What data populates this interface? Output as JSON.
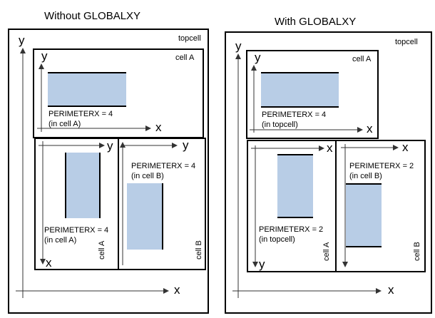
{
  "left": {
    "title": "Without GLOBALXY",
    "topcell": "topcell",
    "x": "x",
    "y": "y",
    "cellA_top": {
      "name": "cell A",
      "note1": "PERIMETERX = 4",
      "note2": "(in cell A)"
    },
    "cellA_rot": {
      "name": "cell A",
      "note1": "PERIMETERX = 4",
      "note2": "(in cell A)"
    },
    "cellB": {
      "name": "cell B",
      "note1": "PERIMETERX = 4",
      "note2": "(in cell B)"
    }
  },
  "right": {
    "title": "With GLOBALXY",
    "topcell": "topcell",
    "x": "x",
    "y": "y",
    "cellA_top": {
      "name": "cell A",
      "note1": "PERIMETERX = 4",
      "note2": "(in topcell)"
    },
    "cellA_rot": {
      "name": "cell A",
      "note1": "PERIMETERX = 2",
      "note2": "(in topcell)"
    },
    "cellB": {
      "name": "cell B",
      "note1": "PERIMETERX = 2",
      "note2": "(in cell B)"
    }
  },
  "colors": {
    "shape_fill": "#b8cde6",
    "line": "#000000"
  }
}
